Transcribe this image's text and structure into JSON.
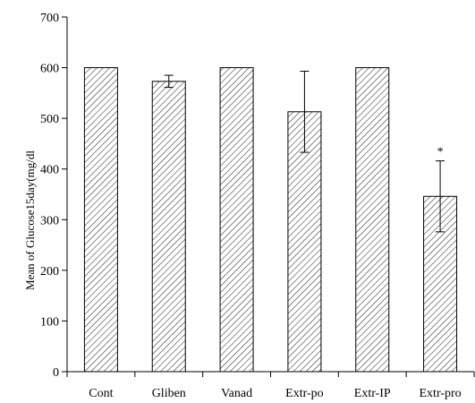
{
  "chart_data": {
    "type": "bar",
    "title": "",
    "xlabel": "",
    "ylabel": "Mean of Glucose15day(mg/dl",
    "ylim": [
      0,
      700
    ],
    "yticks": [
      0,
      100,
      200,
      300,
      400,
      500,
      600,
      700
    ],
    "categories": [
      "Cont",
      "Gliben",
      "Vanad",
      "Extr-po",
      "Extr-IP",
      "Extr-pro"
    ],
    "values": [
      600,
      573,
      600,
      513,
      600,
      346
    ],
    "errors": [
      0,
      12,
      0,
      80,
      0,
      70
    ],
    "annotations": [
      {
        "category": "Extr-pro",
        "text": "*"
      }
    ],
    "bar_pattern": "diagonal-hatch",
    "grid": false,
    "legend": "none",
    "colors": {
      "bar_fill": "#ffffff",
      "hatch": "#000000",
      "axis": "#000000"
    }
  }
}
